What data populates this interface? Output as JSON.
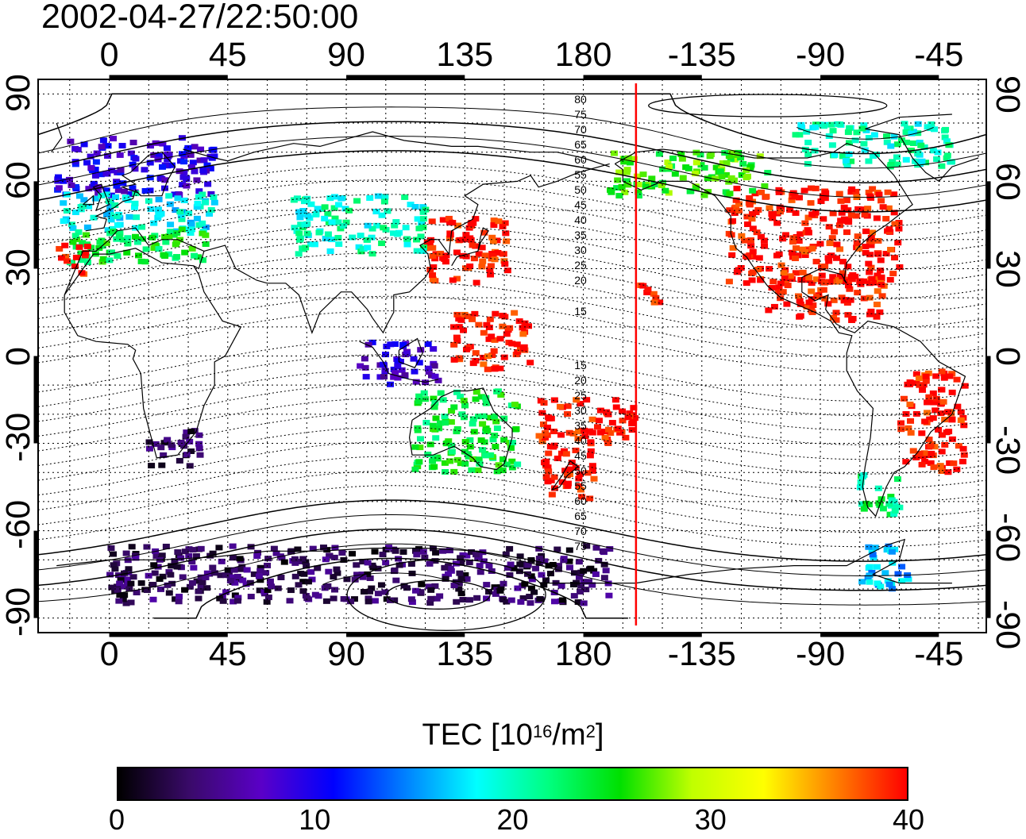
{
  "title": "2002-04-27/22:50:00",
  "map": {
    "top_lon_ticks": [
      "0",
      "45",
      "90",
      "135",
      "180",
      "-135",
      "-90",
      "-45"
    ],
    "bottom_lon_ticks": [
      "0",
      "45",
      "90",
      "135",
      "180",
      "-135",
      "-90",
      "-45"
    ],
    "lon_tick_values": [
      0,
      45,
      90,
      135,
      180,
      225,
      270,
      315
    ],
    "left_lat_ticks": [
      "90",
      "60",
      "30",
      "0",
      "-30",
      "-60",
      "-90"
    ],
    "right_lat_ticks": [
      "90",
      "60",
      "30",
      "0",
      "-30",
      "-60",
      "-90"
    ],
    "lat_tick_values": [
      90,
      60,
      30,
      0,
      -30,
      -60,
      -90
    ],
    "lon_range": [
      -27,
      333
    ],
    "lat_range": [
      -95,
      95
    ],
    "terminator_longitude": 200,
    "terminator_color": "#ff0000",
    "north_maglat_labels": [
      "80",
      "75",
      "70",
      "65",
      "60",
      "55",
      "50",
      "45",
      "40",
      "35",
      "30",
      "25",
      "20",
      "15"
    ],
    "south_maglat_labels": [
      "15",
      "20",
      "25",
      "30",
      "35",
      "40",
      "45",
      "50",
      "55",
      "60",
      "65",
      "70",
      "75"
    ]
  },
  "colorbar": {
    "title_prefix": "TEC  [10",
    "title_exp": "16",
    "title_mid": "/m",
    "title_exp2": "2",
    "title_suffix": "]",
    "tick_labels": [
      "0",
      "10",
      "20",
      "30",
      "40"
    ],
    "range": [
      0,
      40
    ],
    "colormap": [
      "#000000",
      "#3a0a6a",
      "#5a00c8",
      "#0000ff",
      "#0080ff",
      "#00ffff",
      "#00ff80",
      "#00e000",
      "#c0ff00",
      "#ffff00",
      "#ff8000",
      "#ff0000"
    ]
  },
  "tec_regions": [
    {
      "name": "europe-north",
      "lon": [
        -20,
        40
      ],
      "lat": [
        55,
        75
      ],
      "tec": 9
    },
    {
      "name": "europe-central",
      "lon": [
        -18,
        40
      ],
      "lat": [
        42,
        56
      ],
      "tec": 18
    },
    {
      "name": "europe-south",
      "lon": [
        -15,
        40
      ],
      "lat": [
        32,
        44
      ],
      "tec": 24
    },
    {
      "name": "iberia",
      "lon": [
        -20,
        -8
      ],
      "lat": [
        28,
        38
      ],
      "tec": 40
    },
    {
      "name": "japan",
      "lon": [
        120,
        152
      ],
      "lat": [
        25,
        48
      ],
      "tec": 40
    },
    {
      "name": "north-america",
      "lon": [
        -125,
        -60
      ],
      "lat": [
        25,
        58
      ],
      "tec": 40
    },
    {
      "name": "alaska-canada",
      "lon": [
        -170,
        -110
      ],
      "lat": [
        55,
        70
      ],
      "tec": 26
    },
    {
      "name": "greenland-arctic",
      "lon": [
        -100,
        -40
      ],
      "lat": [
        65,
        80
      ],
      "tec": 20
    },
    {
      "name": "mexico-caribbean",
      "lon": [
        -110,
        -65
      ],
      "lat": [
        12,
        28
      ],
      "tec": 40
    },
    {
      "name": "south-america-east",
      "lon": [
        -60,
        -35
      ],
      "lat": [
        -40,
        -5
      ],
      "tec": 40
    },
    {
      "name": "south-america-south",
      "lon": [
        -75,
        -60
      ],
      "lat": [
        -55,
        -40
      ],
      "tec": 22
    },
    {
      "name": "patagonia",
      "lon": [
        -75,
        -55
      ],
      "lat": [
        -80,
        -65
      ],
      "tec": 16
    },
    {
      "name": "new-zealand",
      "lon": [
        165,
        185
      ],
      "lat": [
        -50,
        -30
      ],
      "tec": 40
    },
    {
      "name": "pacific-south",
      "lon": [
        160,
        200
      ],
      "lat": [
        -30,
        -15
      ],
      "tec": 40
    },
    {
      "name": "hawaii",
      "lon": [
        -160,
        -150
      ],
      "lat": [
        18,
        25
      ],
      "tec": 40
    },
    {
      "name": "australia",
      "lon": [
        115,
        155
      ],
      "lat": [
        -40,
        -12
      ],
      "tec": 24
    },
    {
      "name": "south-africa",
      "lon": [
        15,
        35
      ],
      "lat": [
        -38,
        -25
      ],
      "tec": 3
    },
    {
      "name": "antarctica",
      "lon": [
        0,
        190
      ],
      "lat": [
        -85,
        -65
      ],
      "tec": 3
    },
    {
      "name": "asia-central",
      "lon": [
        70,
        120
      ],
      "lat": [
        35,
        55
      ],
      "tec": 20
    },
    {
      "name": "indonesia",
      "lon": [
        95,
        125
      ],
      "lat": [
        -10,
        5
      ],
      "tec": 8
    },
    {
      "name": "pacific-west",
      "lon": [
        130,
        160
      ],
      "lat": [
        -5,
        15
      ],
      "tec": 40
    }
  ]
}
